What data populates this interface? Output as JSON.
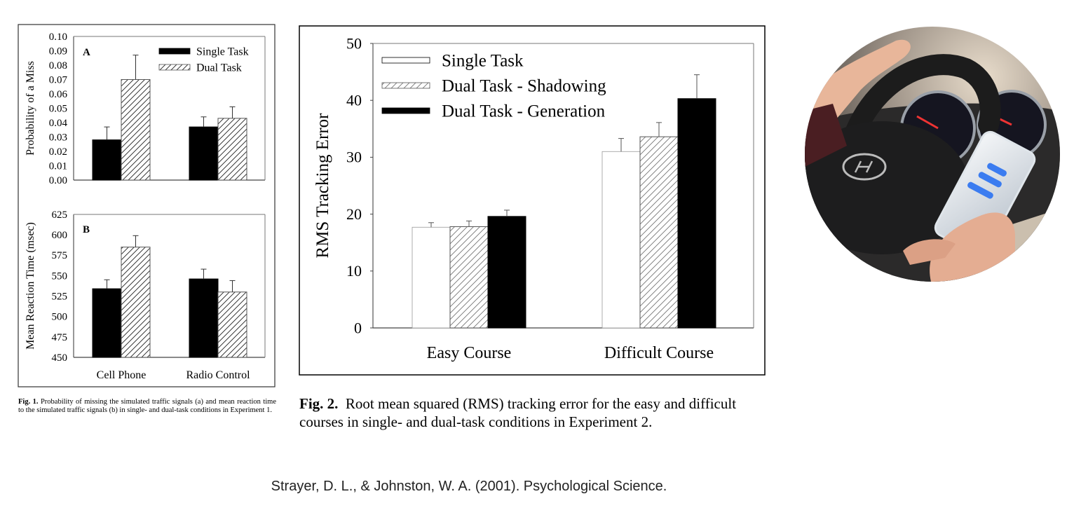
{
  "chart_data": [
    {
      "id": "fig1a",
      "type": "bar",
      "panel_label": "A",
      "ylabel": "Probability of a Miss",
      "ylim": [
        0,
        0.1
      ],
      "yticks": [
        "0.00",
        "0.01",
        "0.02",
        "0.03",
        "0.04",
        "0.05",
        "0.06",
        "0.07",
        "0.08",
        "0.09",
        "0.10"
      ],
      "categories": [
        "Cell Phone",
        "Radio Control"
      ],
      "legend": [
        "Single Task",
        "Dual Task"
      ],
      "legend_position": "top-right",
      "series": [
        {
          "name": "Single Task",
          "values": [
            0.028,
            0.037
          ],
          "error_top": [
            0.037,
            0.044
          ],
          "fill": "#000000"
        },
        {
          "name": "Dual Task",
          "values": [
            0.07,
            0.043
          ],
          "error_top": [
            0.087,
            0.051
          ],
          "fill": "hatch"
        }
      ]
    },
    {
      "id": "fig1b",
      "type": "bar",
      "panel_label": "B",
      "ylabel": "Mean Reaction Time (msec)",
      "ylim": [
        450,
        625
      ],
      "yticks": [
        "450",
        "475",
        "500",
        "525",
        "550",
        "575",
        "600",
        "625"
      ],
      "categories": [
        "Cell Phone",
        "Radio Control"
      ],
      "series": [
        {
          "name": "Single Task",
          "values": [
            534,
            546
          ],
          "error_top": [
            545,
            558
          ],
          "fill": "#000000"
        },
        {
          "name": "Dual Task",
          "values": [
            585,
            530
          ],
          "error_top": [
            599,
            544
          ],
          "fill": "hatch"
        }
      ]
    },
    {
      "id": "fig2",
      "type": "bar",
      "ylabel": "RMS Tracking Error",
      "ylim": [
        0,
        50
      ],
      "yticks": [
        "0",
        "10",
        "20",
        "30",
        "40",
        "50"
      ],
      "categories": [
        "Easy Course",
        "Difficult Course"
      ],
      "legend": [
        "Single Task",
        "Dual Task - Shadowing",
        "Dual Task - Generation"
      ],
      "legend_position": "top-left",
      "series": [
        {
          "name": "Single Task",
          "values": [
            17.7,
            31.0
          ],
          "error_top": [
            18.5,
            33.3
          ],
          "fill": "#ffffff"
        },
        {
          "name": "Dual Task - Shadowing",
          "values": [
            17.8,
            33.6
          ],
          "error_top": [
            18.8,
            36.1
          ],
          "fill": "hatch"
        },
        {
          "name": "Dual Task - Generation",
          "values": [
            19.6,
            40.3
          ],
          "error_top": [
            20.7,
            44.5
          ],
          "fill": "#000000"
        }
      ]
    }
  ],
  "captions": {
    "fig1_label": "Fig. 1.",
    "fig1_text": "Probability of missing the simulated traffic signals (a) and mean reaction time to the simulated traffic signals (b) in single- and dual-task conditions in Experiment 1.",
    "fig2_label": "Fig. 2.",
    "fig2_text": "Root mean squared (RMS) tracking error for the easy and difficult courses in single- and dual-task conditions in Experiment 2."
  },
  "citation": "Strayer, D. L., & Johnston, W. A. (2001). Psychological Science.",
  "photo": {
    "subject": "driver-texting-photo"
  }
}
